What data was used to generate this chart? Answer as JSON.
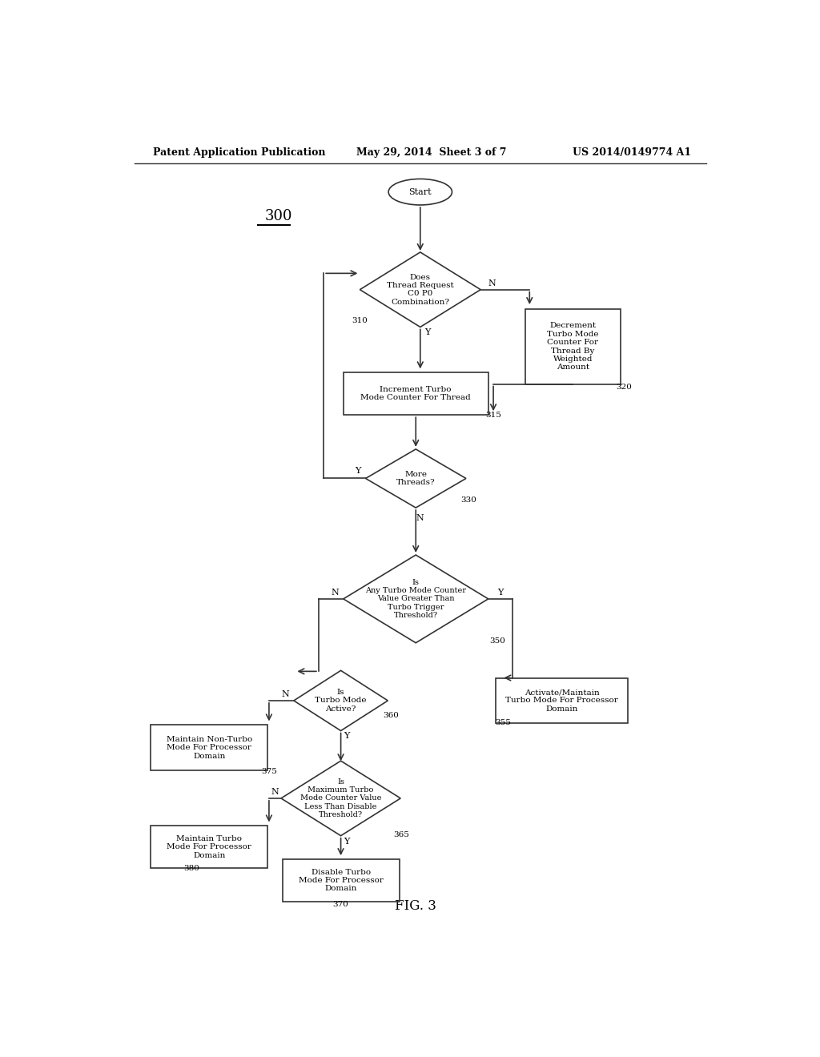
{
  "bg_color": "#ffffff",
  "header_left": "Patent Application Publication",
  "header_center": "May 29, 2014  Sheet 3 of 7",
  "header_right": "US 2014/0149774 A1",
  "diagram_label": "300",
  "fig_label": "FIG. 3",
  "line_color": "#333333",
  "text_color": "#000000",
  "font_size": 8
}
